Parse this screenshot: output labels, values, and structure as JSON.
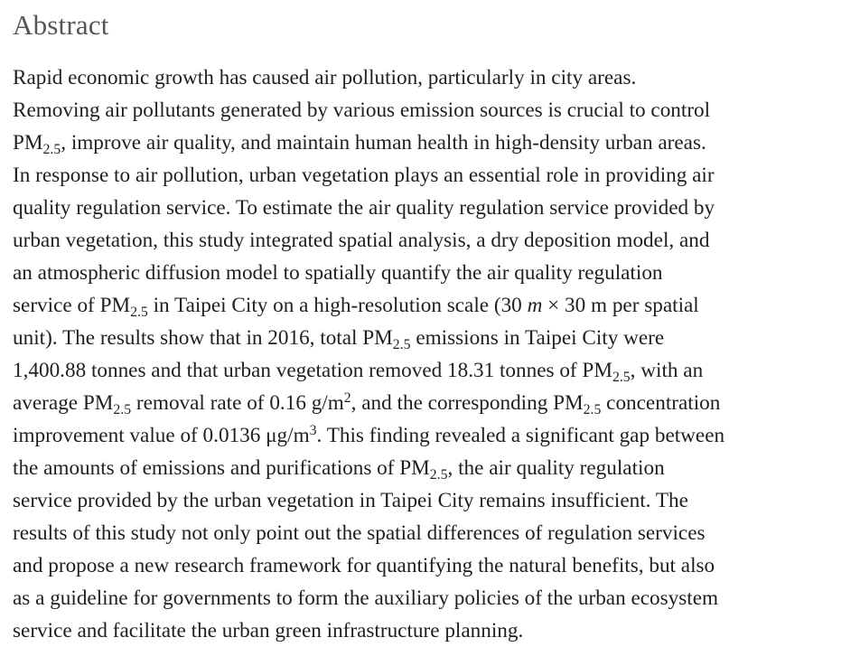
{
  "heading": "Abstract",
  "abstract": {
    "lines": [
      [
        "Rapid economic growth has caused air pollution, particularly in city areas."
      ],
      [
        "Removing air pollutants generated by various emission sources is crucial to control"
      ],
      [
        "PM",
        {
          "sub": "2.5"
        },
        ", improve air quality, and maintain human health in high-density urban areas."
      ],
      [
        "In response to air pollution, urban vegetation plays an essential role in providing air"
      ],
      [
        "quality regulation service. To estimate the air quality regulation service provided by"
      ],
      [
        "urban vegetation, this study integrated spatial analysis, a dry deposition model, and"
      ],
      [
        "an atmospheric diffusion model to spatially quantify the air quality regulation"
      ],
      [
        "service of PM",
        {
          "sub": "2.5"
        },
        " in Taipei City on a high-resolution scale (30 ",
        {
          "em": "m"
        },
        " × 30 m per spatial"
      ],
      [
        "unit). The results show that in 2016, total PM",
        {
          "sub": "2.5"
        },
        " emissions in Taipei City were"
      ],
      [
        "1,400.88 tonnes and that urban vegetation removed 18.31 tonnes of PM",
        {
          "sub": "2.5"
        },
        ", with an"
      ],
      [
        "average PM",
        {
          "sub": "2.5"
        },
        " removal rate of 0.16 g/m",
        {
          "sup": "2"
        },
        ", and the corresponding PM",
        {
          "sub": "2.5"
        },
        " concentration"
      ],
      [
        "improvement value of 0.0136 μg/m",
        {
          "sup": "3"
        },
        ". This finding revealed a significant gap between"
      ],
      [
        "the amounts of emissions and purifications of PM",
        {
          "sub": "2.5"
        },
        ", the air quality regulation"
      ],
      [
        "service provided by the urban vegetation in Taipei City remains insufficient. The"
      ],
      [
        "results of this study not only point out the spatial differences of regulation services"
      ],
      [
        "and propose a new research framework for quantifying the natural benefits, but also"
      ],
      [
        "as a guideline for governments to form the auxiliary policies of the urban ecosystem"
      ],
      [
        "service and facilitate the urban green infrastructure planning."
      ]
    ]
  }
}
